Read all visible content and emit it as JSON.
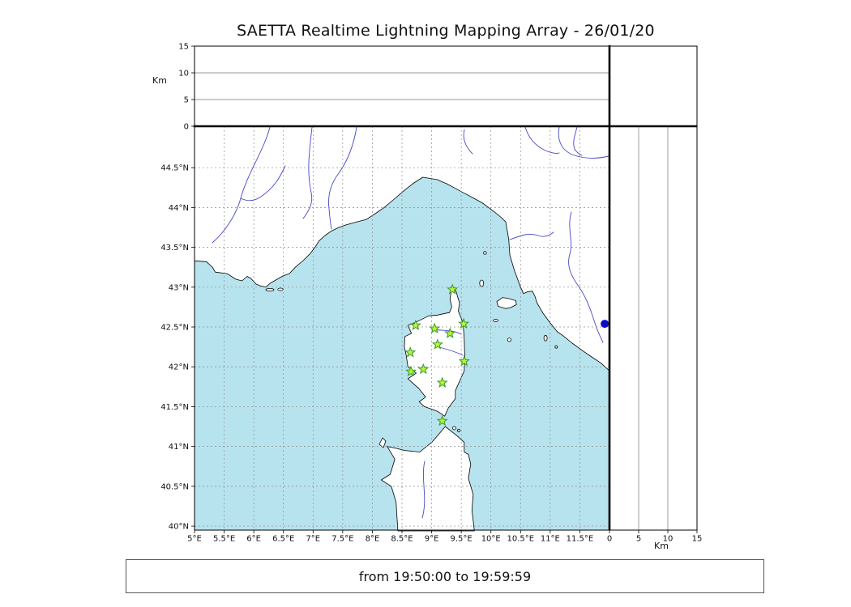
{
  "title": "SAETTA Realtime Lightning Mapping Array - 26/01/20",
  "status_bar": {
    "text": "from 19:50:00 to 19:59:59"
  },
  "axes": {
    "km_label_top": "Km",
    "km_label_right": "Km"
  },
  "colors": {
    "sea": "#b7e3ee",
    "land": "#ffffff",
    "coastline": "#000000",
    "river": "#4747c8",
    "grid": "#8c8c8c",
    "panel_gridline": "#777777",
    "station_fill": "#b8f53c",
    "station_stroke": "#3a9a28",
    "source_dot": "#0b0bcc"
  },
  "chart_data": {
    "type": "scatter",
    "title": "SAETTA Realtime Lightning Mapping Array - 26/01/20",
    "time_window": "from 19:50:00 to 19:59:59",
    "map_panel": {
      "lon_range": [
        5,
        12
      ],
      "lat_range": [
        39.95,
        45.02
      ],
      "grid": true,
      "lon_ticks": [
        {
          "v": 5,
          "label": "5°E"
        },
        {
          "v": 5.5,
          "label": "5.5°E"
        },
        {
          "v": 6,
          "label": "6°E"
        },
        {
          "v": 6.5,
          "label": "6.5°E"
        },
        {
          "v": 7,
          "label": "7°E"
        },
        {
          "v": 7.5,
          "label": "7.5°E"
        },
        {
          "v": 8,
          "label": "8°E"
        },
        {
          "v": 8.5,
          "label": "8.5°E"
        },
        {
          "v": 9,
          "label": "9°E"
        },
        {
          "v": 9.5,
          "label": "9.5°E"
        },
        {
          "v": 10,
          "label": "10°E"
        },
        {
          "v": 10.5,
          "label": "10.5°E"
        },
        {
          "v": 11,
          "label": "11°E"
        },
        {
          "v": 11.5,
          "label": "11.5°E"
        }
      ],
      "lat_ticks": [
        {
          "v": 40,
          "label": "40°N"
        },
        {
          "v": 40.5,
          "label": "40.5°N"
        },
        {
          "v": 41,
          "label": "41°N"
        },
        {
          "v": 41.5,
          "label": "41.5°N"
        },
        {
          "v": 42,
          "label": "42°N"
        },
        {
          "v": 42.5,
          "label": "42.5°N"
        },
        {
          "v": 43,
          "label": "43°N"
        },
        {
          "v": 43.5,
          "label": "43.5°N"
        },
        {
          "v": 44,
          "label": "44°N"
        },
        {
          "v": 44.5,
          "label": "44.5°N"
        }
      ]
    },
    "altitude_panels": {
      "unit": "Km",
      "range_km": [
        0,
        15
      ],
      "ticks": [
        {
          "v": 0,
          "label": "0"
        },
        {
          "v": 5,
          "label": "5"
        },
        {
          "v": 10,
          "label": "10"
        },
        {
          "v": 15,
          "label": "15"
        }
      ],
      "gridlines_km": [
        5,
        10
      ]
    },
    "stations": [
      {
        "lon": 9.35,
        "lat": 42.97
      },
      {
        "lon": 8.73,
        "lat": 42.52
      },
      {
        "lon": 9.05,
        "lat": 42.48
      },
      {
        "lon": 9.31,
        "lat": 42.42
      },
      {
        "lon": 9.54,
        "lat": 42.54
      },
      {
        "lon": 9.1,
        "lat": 42.28
      },
      {
        "lon": 8.64,
        "lat": 42.18
      },
      {
        "lon": 9.55,
        "lat": 42.07
      },
      {
        "lon": 8.65,
        "lat": 41.94
      },
      {
        "lon": 8.86,
        "lat": 41.97
      },
      {
        "lon": 9.18,
        "lat": 41.8
      },
      {
        "lon": 9.18,
        "lat": 41.32
      }
    ],
    "sources": [
      {
        "lon": 11.92,
        "lat": 42.54
      }
    ]
  }
}
